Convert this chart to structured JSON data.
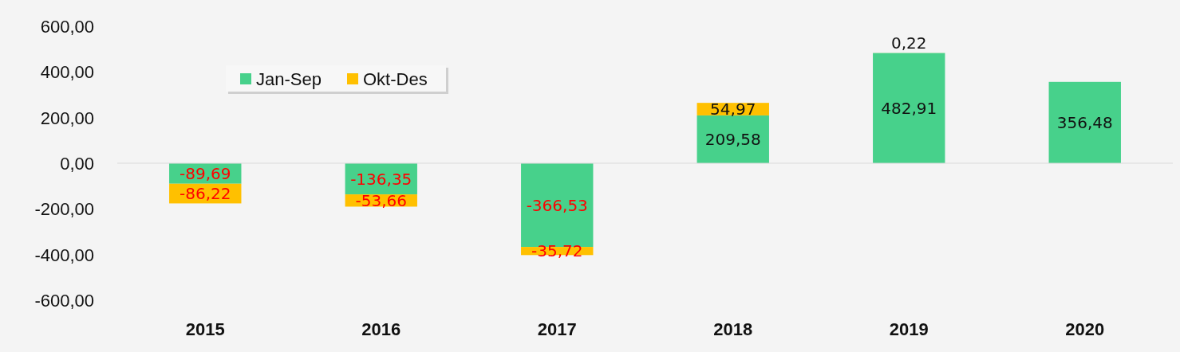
{
  "chart_data": {
    "type": "bar",
    "stacked": true,
    "categories": [
      "2015",
      "2016",
      "2017",
      "2018",
      "2019",
      "2020"
    ],
    "series": [
      {
        "name": "Jan-Sep",
        "color": "#47d18b",
        "values": [
          -89.69,
          -136.35,
          -366.53,
          209.58,
          482.91,
          356.48
        ],
        "value_labels": [
          "-89,69",
          "-136,35",
          "-366,53",
          "209,58",
          "482,91",
          "356,48"
        ]
      },
      {
        "name": "Okt-Des",
        "color": "#ffc000",
        "values": [
          -86.22,
          -53.66,
          -35.72,
          54.97,
          0.22,
          null
        ],
        "value_labels": [
          "-86,22",
          "-53,66",
          "-35,72",
          "54,97",
          "0,22",
          null
        ]
      }
    ],
    "ylim": [
      -600,
      600
    ],
    "yticks": [
      {
        "value": -600,
        "label": "-600,00"
      },
      {
        "value": -400,
        "label": "-400,00"
      },
      {
        "value": -200,
        "label": "-200,00"
      },
      {
        "value": 0,
        "label": "0,00"
      },
      {
        "value": 200,
        "label": "200,00"
      },
      {
        "value": 400,
        "label": "400,00"
      },
      {
        "value": 600,
        "label": "600,00"
      }
    ],
    "legend": "top left"
  }
}
